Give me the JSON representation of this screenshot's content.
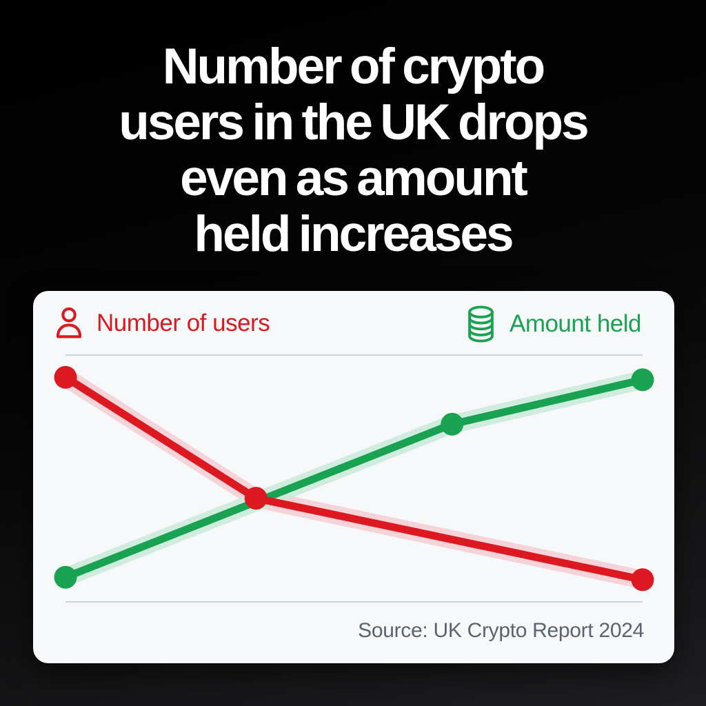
{
  "title": {
    "lines": [
      "Number of crypto",
      "users in the UK drops",
      "even as amount",
      "held increases"
    ]
  },
  "legend": {
    "users": {
      "label": "Number of users",
      "icon": "person-icon",
      "color": "#dc1820"
    },
    "held": {
      "label": "Amount held",
      "icon": "coins-icon",
      "color": "#18a251"
    }
  },
  "source": "Source: UK Crypto Report 2024",
  "colors": {
    "red": "#dc1820",
    "red_halo": "#f5ced2",
    "green": "#18a251",
    "green_halo": "#c9ead9",
    "grid": "#c8d2dd",
    "card_bg": "#f7f8fa",
    "source_text": "#5a6370",
    "title_text": "#ffffff"
  },
  "chart_data": {
    "type": "line",
    "title": "",
    "xlabel": "",
    "ylabel": "",
    "axes_labeled": false,
    "gridlines": {
      "top": true,
      "bottom": true,
      "count": 2
    },
    "legend_position": "top",
    "x_range_pct": [
      0,
      100
    ],
    "y_range_pct": [
      0,
      100
    ],
    "series": [
      {
        "name": "Number of users",
        "color": "#dc1820",
        "halo_color": "#f5ced2",
        "trend": "falling",
        "points": [
          {
            "x_pct": 0,
            "y_pct": 91
          },
          {
            "x_pct": 33,
            "y_pct": 42
          },
          {
            "x_pct": 100,
            "y_pct": 9
          }
        ]
      },
      {
        "name": "Amount held",
        "color": "#18a251",
        "halo_color": "#c9ead9",
        "trend": "rising",
        "points": [
          {
            "x_pct": 0,
            "y_pct": 10
          },
          {
            "x_pct": 67,
            "y_pct": 72
          },
          {
            "x_pct": 100,
            "y_pct": 90
          }
        ]
      }
    ]
  }
}
